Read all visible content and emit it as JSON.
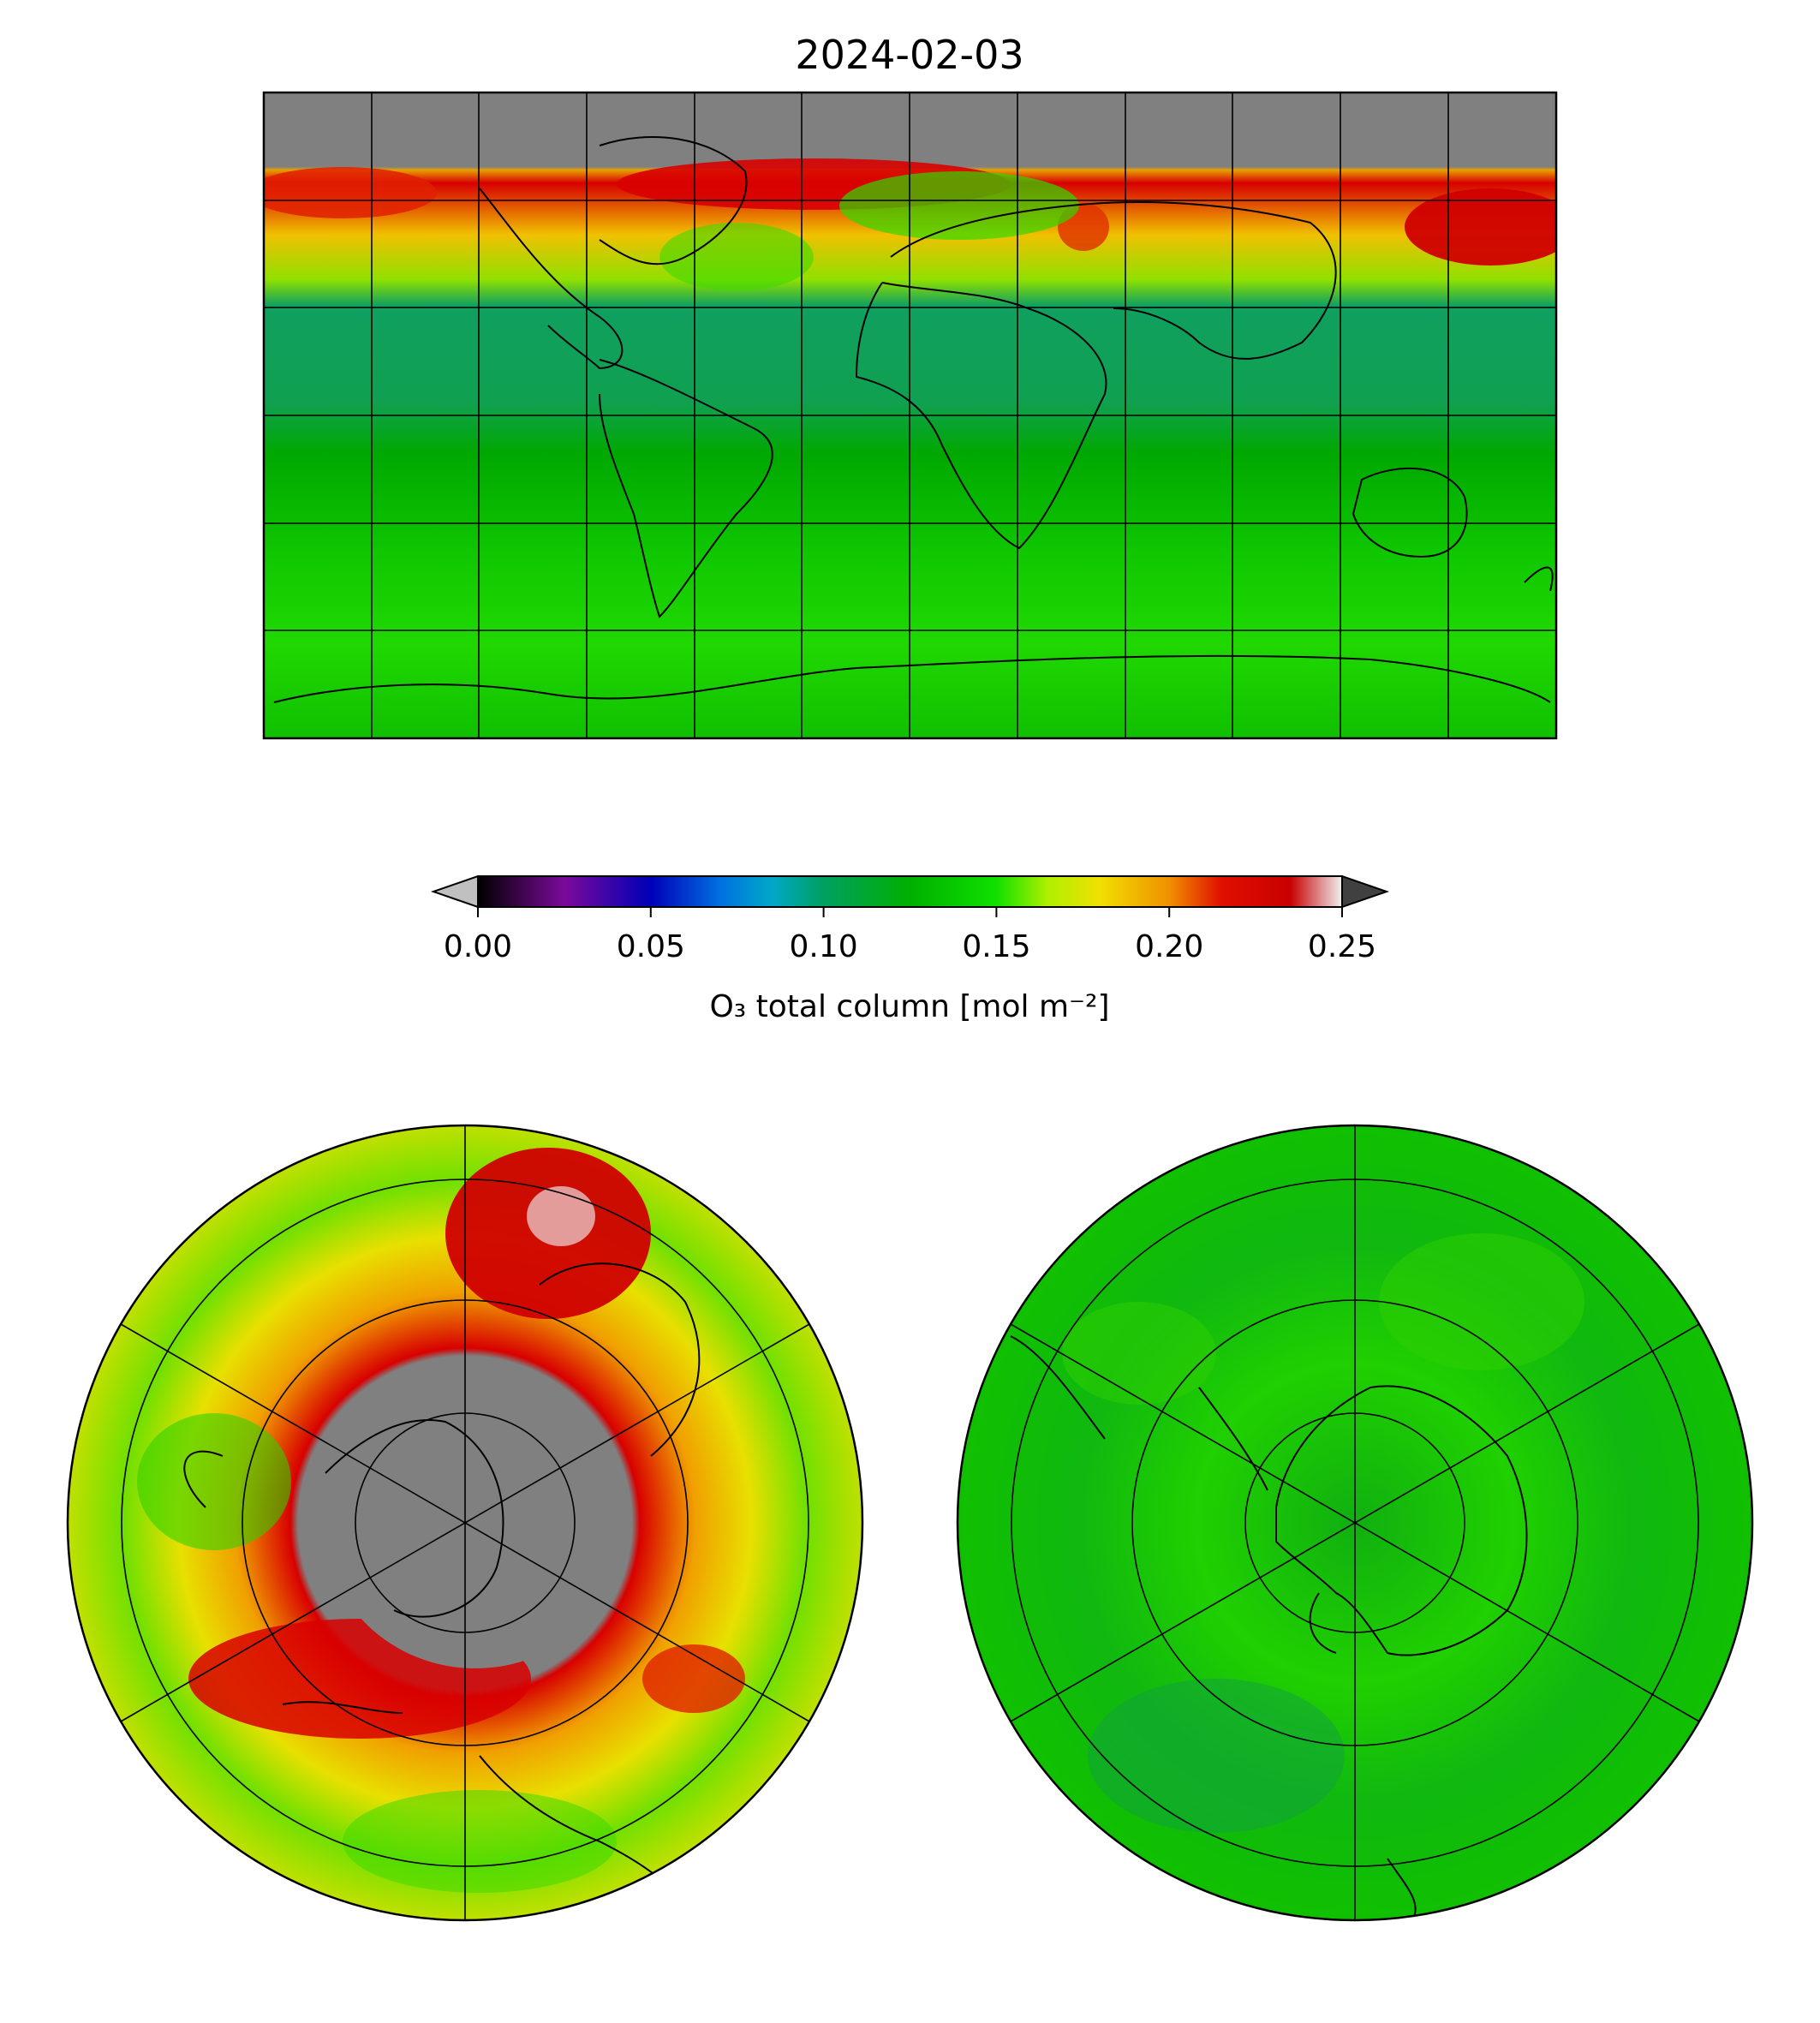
{
  "title": "2024-02-03",
  "colorbar": {
    "label": "O₃ total column [mol m⁻²]",
    "ticks": [
      "0.00",
      "0.05",
      "0.10",
      "0.15",
      "0.20",
      "0.25"
    ],
    "tick_values": [
      0.0,
      0.05,
      0.1,
      0.15,
      0.2,
      0.25
    ],
    "range": [
      0.0,
      0.25
    ],
    "extend": "both",
    "under_color": "#c0c0c0",
    "over_color": "#404040",
    "stops": [
      {
        "v": 0.0,
        "c": "#000000"
      },
      {
        "v": 0.025,
        "c": "#7a0a9a"
      },
      {
        "v": 0.05,
        "c": "#0000b8"
      },
      {
        "v": 0.07,
        "c": "#0070e0"
      },
      {
        "v": 0.085,
        "c": "#00a8c8"
      },
      {
        "v": 0.1,
        "c": "#00a060"
      },
      {
        "v": 0.125,
        "c": "#00b000"
      },
      {
        "v": 0.15,
        "c": "#10e000"
      },
      {
        "v": 0.165,
        "c": "#b0f000"
      },
      {
        "v": 0.18,
        "c": "#f0e000"
      },
      {
        "v": 0.2,
        "c": "#f09000"
      },
      {
        "v": 0.215,
        "c": "#e01000"
      },
      {
        "v": 0.235,
        "c": "#c80000"
      },
      {
        "v": 0.25,
        "c": "#f0f0f0"
      }
    ]
  },
  "map_colors": {
    "nodata": "#808080",
    "polar_low": "#f0a000",
    "high_red": "#d80000",
    "yellow": "#e8e000",
    "green": "#20d800",
    "green_dark": "#10b010",
    "tropics": "#10a060",
    "outline": "#000000"
  },
  "panels": {
    "global": {
      "projection": "plate-carree"
    },
    "north": {
      "projection": "north-polar-stereographic"
    },
    "south": {
      "projection": "south-polar-stereographic"
    }
  }
}
